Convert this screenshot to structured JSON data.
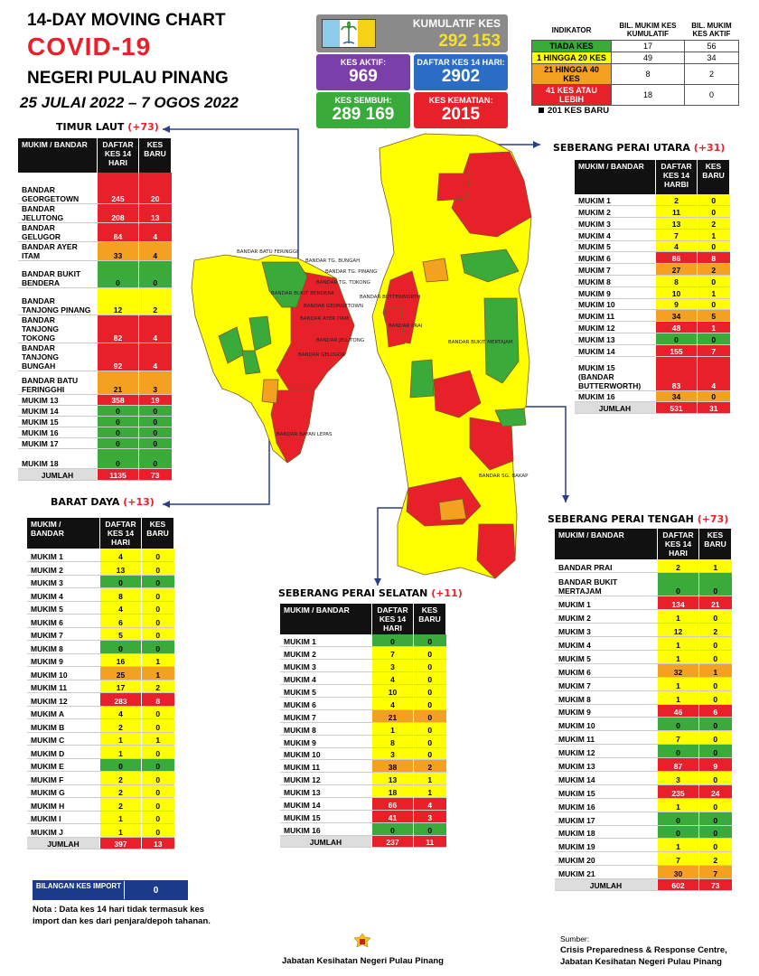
{
  "title": {
    "line1": "14-DAY MOVING CHART",
    "line2": "COVID-19",
    "line3": "NEGERI PULAU PINANG",
    "dates": "25 JULAI 2022 – 7 OGOS 2022"
  },
  "summary": {
    "cumulative_label": "KUMULATIF KES",
    "cumulative_value": "292 153",
    "active_label": "KES AKTIF:",
    "active_value": "969",
    "list14_label": "DAFTAR KES 14 HARI:",
    "list14_value": "2902",
    "recovered_label": "KES SEMBUH:",
    "recovered_value": "289 169",
    "deaths_label": "KES KEMATIAN:",
    "deaths_value": "2015"
  },
  "colors": {
    "green": "#3aab3a",
    "yellow": "#ffff00",
    "orange": "#f4a020",
    "red": "#e8202a",
    "purple": "#7a3fa8",
    "blue": "#2b6cc4",
    "navy": "#1c3a8a"
  },
  "legend": {
    "headers": [
      "INDIKATOR",
      "BIL. MUKIM KES KUMULATIF",
      "BIL. MUKIM KES AKTIF"
    ],
    "rows": [
      {
        "label": "TIADA KES",
        "kumulatif": "17",
        "aktif": "56",
        "color": "#3aab3a"
      },
      {
        "label": "1 HINGGA 20 KES",
        "kumulatif": "49",
        "aktif": "34",
        "color": "#ffff00"
      },
      {
        "label": "21 HINGGA 40 KES",
        "kumulatif": "8",
        "aktif": "2",
        "color": "#f4a020"
      },
      {
        "label": "41 KES ATAU LEBIH",
        "kumulatif": "18",
        "aktif": "0",
        "color": "#e8202a"
      }
    ],
    "new_cases_note": "201 KES BARU"
  },
  "table_headers": {
    "mukim": "MUKIM / BANDAR",
    "daftar": "DAFTAR KES 14 HARI",
    "daftar_spu": "DAFTAR KES 14 HARBI",
    "baru": "KES BARU",
    "total": "JUMLAH"
  },
  "sections": {
    "timur_laut": {
      "name": "TIMUR LAUT",
      "plus": "(+73)",
      "rows": [
        [
          "BANDAR GEORGETOWN",
          "245",
          "20"
        ],
        [
          "BANDAR JELUTONG",
          "208",
          "13"
        ],
        [
          "BANDAR GELUGOR",
          "84",
          "4"
        ],
        [
          "BANDAR AYER ITAM",
          "33",
          "4"
        ],
        [
          "BANDAR BUKIT BENDERA",
          "0",
          "0"
        ],
        [
          "BANDAR TANJONG PINANG",
          "12",
          "2"
        ],
        [
          "BANDAR TANJONG TOKONG",
          "82",
          "4"
        ],
        [
          "BANDAR TANJONG BUNGAH",
          "92",
          "4"
        ],
        [
          "BANDAR BATU FERINGGHI",
          "21",
          "3"
        ],
        [
          "MUKIM 13",
          "358",
          "19"
        ],
        [
          "MUKIM 14",
          "0",
          "0"
        ],
        [
          "MUKIM 15",
          "0",
          "0"
        ],
        [
          "MUKIM 16",
          "0",
          "0"
        ],
        [
          "MUKIM 17",
          "0",
          "0"
        ],
        [
          "MUKIM 18",
          "0",
          "0"
        ]
      ],
      "total": [
        "1135",
        "73"
      ]
    },
    "barat_daya": {
      "name": "BARAT DAYA",
      "plus": "(+13)",
      "rows": [
        [
          "MUKIM 1",
          "4",
          "0"
        ],
        [
          "MUKIM 2",
          "13",
          "0"
        ],
        [
          "MUKIM 3",
          "0",
          "0"
        ],
        [
          "MUKIM 4",
          "8",
          "0"
        ],
        [
          "MUKIM 5",
          "4",
          "0"
        ],
        [
          "MUKIM 6",
          "6",
          "0"
        ],
        [
          "MUKIM 7",
          "5",
          "0"
        ],
        [
          "MUKIM 8",
          "0",
          "0"
        ],
        [
          "MUKIM 9",
          "16",
          "1"
        ],
        [
          "MUKIM 10",
          "25",
          "1"
        ],
        [
          "MUKIM 11",
          "17",
          "2"
        ],
        [
          "MUKIM 12",
          "283",
          "8"
        ],
        [
          "MUKIM A",
          "4",
          "0"
        ],
        [
          "MUKIM B",
          "2",
          "0"
        ],
        [
          "MUKIM C",
          "1",
          "1"
        ],
        [
          "MUKIM D",
          "1",
          "0"
        ],
        [
          "MUKIM E",
          "0",
          "0"
        ],
        [
          "MUKIM F",
          "2",
          "0"
        ],
        [
          "MUKIM G",
          "2",
          "0"
        ],
        [
          "MUKIM H",
          "2",
          "0"
        ],
        [
          "MUKIM I",
          "1",
          "0"
        ],
        [
          "MUKIM J",
          "1",
          "0"
        ]
      ],
      "total": [
        "397",
        "13"
      ]
    },
    "spu": {
      "name": "SEBERANG PERAI UTARA",
      "plus": "(+31)",
      "rows": [
        [
          "MUKIM 1",
          "2",
          "0"
        ],
        [
          "MUKIM 2",
          "11",
          "0"
        ],
        [
          "MUKIM 3",
          "13",
          "2"
        ],
        [
          "MUKIM 4",
          "7",
          "1"
        ],
        [
          "MUKIM 5",
          "4",
          "0"
        ],
        [
          "MUKIM 6",
          "86",
          "8"
        ],
        [
          "MUKIM 7",
          "27",
          "2"
        ],
        [
          "MUKIM 8",
          "8",
          "0"
        ],
        [
          "MUKIM 9",
          "10",
          "1"
        ],
        [
          "MUKIM 10",
          "9",
          "0"
        ],
        [
          "MUKIM 11",
          "34",
          "5"
        ],
        [
          "MUKIM 12",
          "48",
          "1"
        ],
        [
          "MUKIM 13",
          "0",
          "0"
        ],
        [
          "MUKIM 14",
          "155",
          "7"
        ],
        [
          "MUKIM 15 (BANDAR BUTTERWORTH)",
          "83",
          "4"
        ],
        [
          "MUKIM 16",
          "34",
          "0"
        ]
      ],
      "total": [
        "531",
        "31"
      ]
    },
    "spt": {
      "name": "SEBERANG PERAI TENGAH",
      "plus": "(+73)",
      "rows": [
        [
          "BANDAR PRAI",
          "2",
          "1"
        ],
        [
          "BANDAR BUKIT MERTAJAM",
          "0",
          "0"
        ],
        [
          "MUKIM 1",
          "134",
          "21"
        ],
        [
          "MUKIM 2",
          "1",
          "0"
        ],
        [
          "MUKIM 3",
          "12",
          "2"
        ],
        [
          "MUKIM 4",
          "1",
          "0"
        ],
        [
          "MUKIM 5",
          "1",
          "0"
        ],
        [
          "MUKIM 6",
          "32",
          "1"
        ],
        [
          "MUKIM 7",
          "1",
          "0"
        ],
        [
          "MUKIM 8",
          "1",
          "0"
        ],
        [
          "MUKIM 9",
          "46",
          "6"
        ],
        [
          "MUKIM 10",
          "0",
          "0"
        ],
        [
          "MUKIM 11",
          "7",
          "0"
        ],
        [
          "MUKIM 12",
          "0",
          "0"
        ],
        [
          "MUKIM 13",
          "87",
          "9"
        ],
        [
          "MUKIM 14",
          "3",
          "0"
        ],
        [
          "MUKIM 15",
          "235",
          "24"
        ],
        [
          "MUKIM 16",
          "1",
          "0"
        ],
        [
          "MUKIM 17",
          "0",
          "0"
        ],
        [
          "MUKIM 18",
          "0",
          "0"
        ],
        [
          "MUKIM 19",
          "1",
          "0"
        ],
        [
          "MUKIM 20",
          "7",
          "2"
        ],
        [
          "MUKIM 21",
          "30",
          "7"
        ]
      ],
      "total": [
        "602",
        "73"
      ]
    },
    "sps": {
      "name": "SEBERANG PERAI SELATAN",
      "plus": "(+11)",
      "rows": [
        [
          "MUKIM 1",
          "0",
          "0"
        ],
        [
          "MUKIM 2",
          "7",
          "0"
        ],
        [
          "MUKIM 3",
          "3",
          "0"
        ],
        [
          "MUKIM 4",
          "4",
          "0"
        ],
        [
          "MUKIM 5",
          "10",
          "0"
        ],
        [
          "MUKIM 6",
          "4",
          "0"
        ],
        [
          "MUKIM 7",
          "21",
          "0"
        ],
        [
          "MUKIM 8",
          "1",
          "0"
        ],
        [
          "MUKIM 9",
          "8",
          "0"
        ],
        [
          "MUKIM 10",
          "3",
          "0"
        ],
        [
          "MUKIM 11",
          "38",
          "2"
        ],
        [
          "MUKIM 12",
          "13",
          "1"
        ],
        [
          "MUKIM 13",
          "18",
          "1"
        ],
        [
          "MUKIM 14",
          "66",
          "4"
        ],
        [
          "MUKIM 15",
          "41",
          "3"
        ],
        [
          "MUKIM 16",
          "0",
          "0"
        ]
      ],
      "total": [
        "237",
        "11"
      ]
    }
  },
  "map_labels": {
    "island": [
      "BANDAR BATU FERINGGI",
      "BANDAR TG. BUNGAH",
      "BANDAR TG. PINANG",
      "BANDAR TG. TOKONG",
      "BANDAR BUKIT BENDERA",
      "BANDAR GEORGETOWN",
      "BANDAR AYER ITAM",
      "BANDAR JELUTONG",
      "BANDAR GELUGOR",
      "BANDAR BAYAN LEPAS"
    ],
    "mainland": [
      "BANDAR BUTTERWORTH",
      "BANDAR PRAI",
      "BANDAR BUKIT MERTAJAM",
      "BANDAR SG. BAKAP"
    ]
  },
  "import": {
    "label": "BILANGAN KES IMPORT",
    "value": "0",
    "note": "Nota : Data kes 14 hari tidak termasuk kes import dan kes dari penjara/depoh tahanan."
  },
  "footer": {
    "agency": "Jabatan Kesihatan Negeri Pulau Pinang",
    "source_label": "Sumber:",
    "source_line1": "Crisis Preparedness & Response Centre,",
    "source_line2": "Jabatan Kesihatan Negeri Pulau Pinang"
  }
}
